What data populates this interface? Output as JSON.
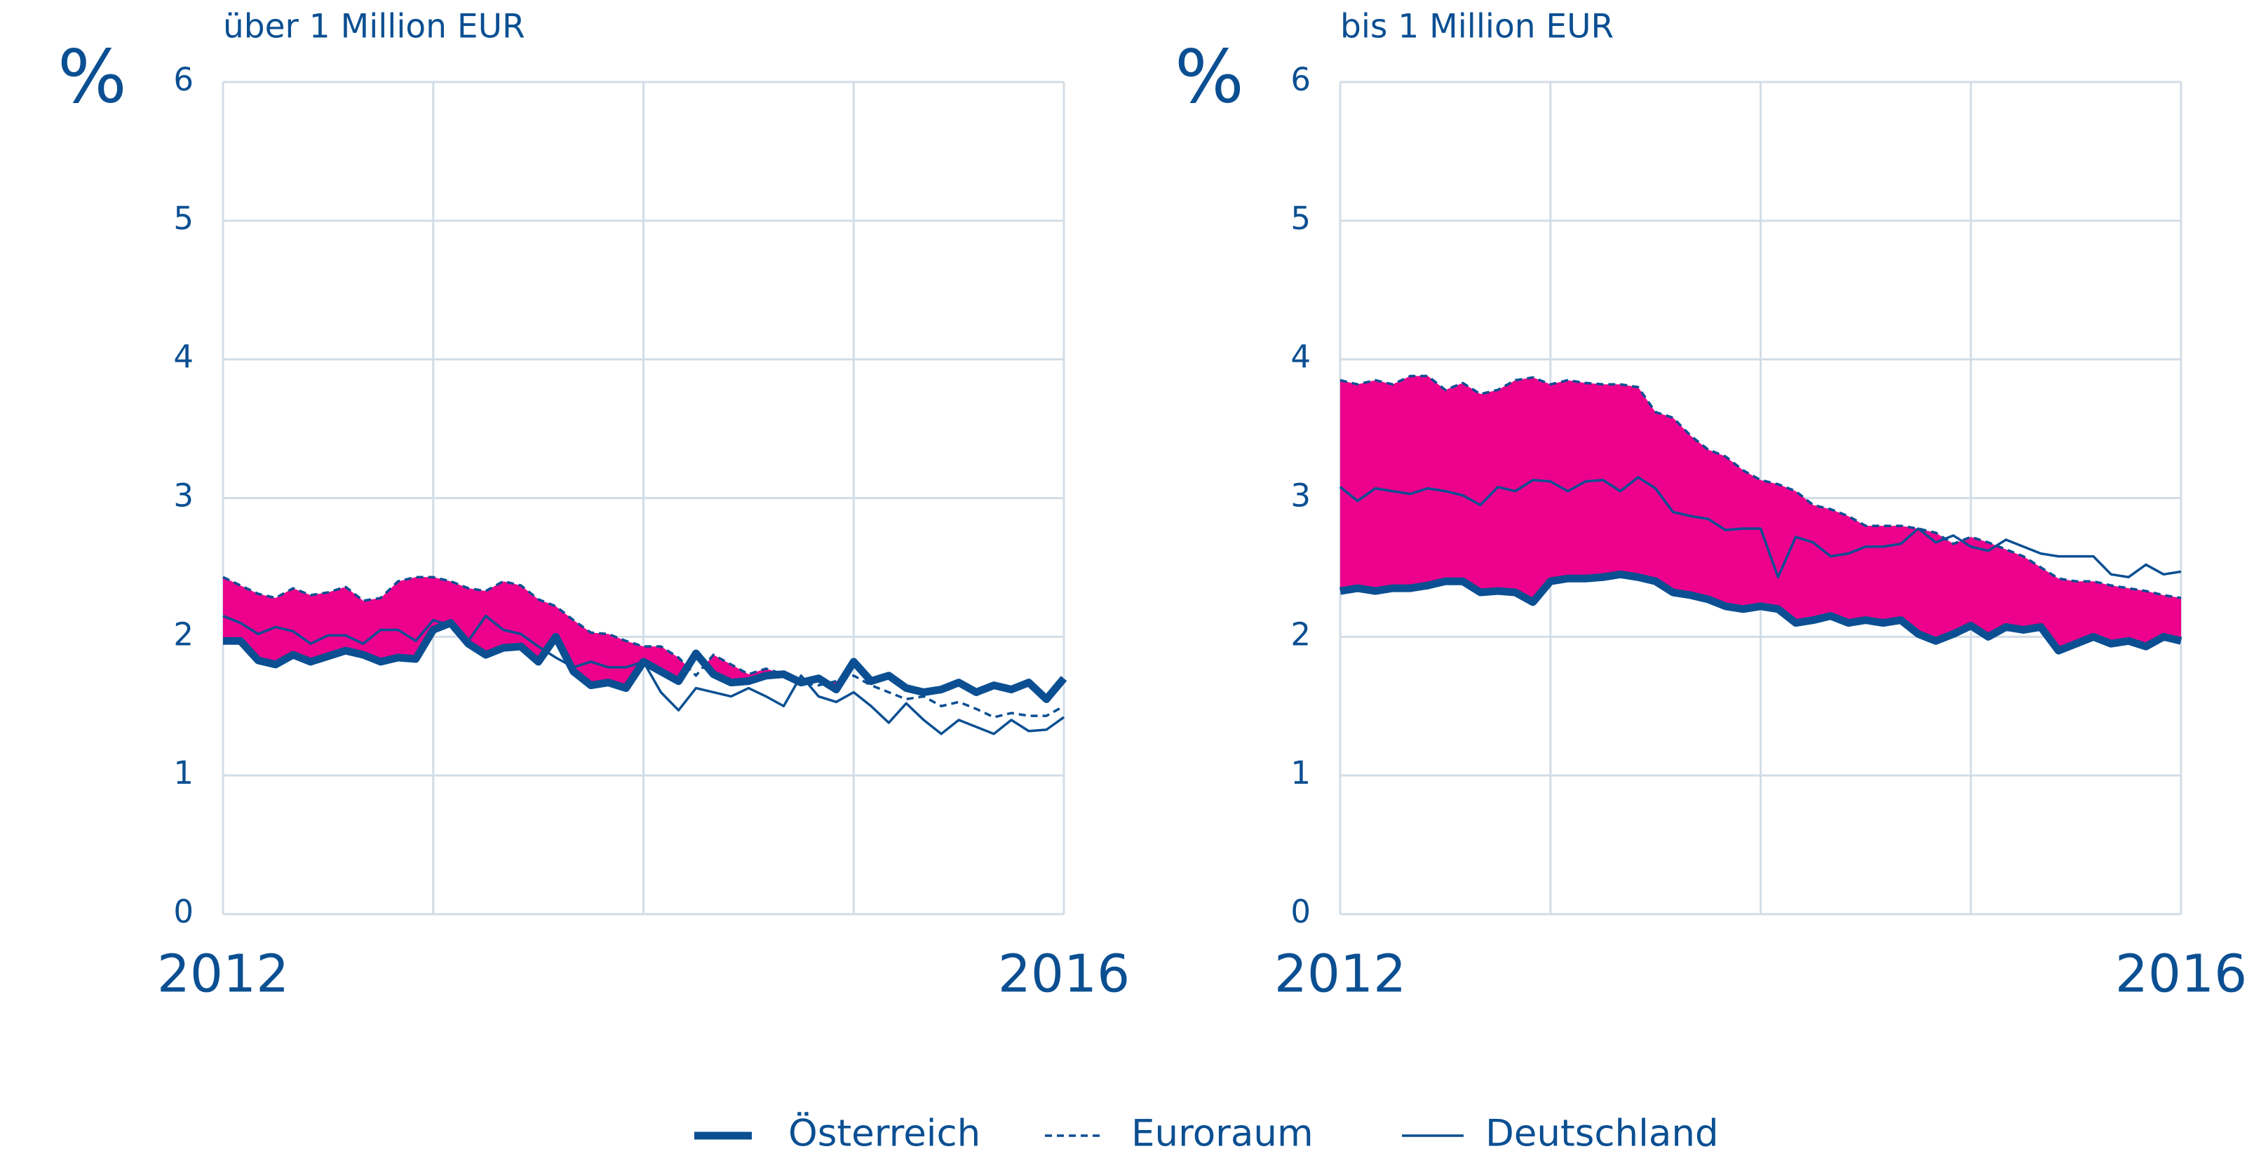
{
  "chart_data": [
    {
      "type": "line",
      "title": "über 1 Million EUR",
      "ylabel": "%",
      "x": [
        2012,
        2012.083,
        2012.167,
        2012.25,
        2012.333,
        2012.417,
        2012.5,
        2012.583,
        2012.667,
        2012.75,
        2012.833,
        2012.917,
        2013,
        2013.083,
        2013.167,
        2013.25,
        2013.333,
        2013.417,
        2013.5,
        2013.583,
        2013.667,
        2013.75,
        2013.833,
        2013.917,
        2014,
        2014.083,
        2014.167,
        2014.25,
        2014.333,
        2014.417,
        2014.5,
        2014.583,
        2014.667,
        2014.75,
        2014.833,
        2014.917,
        2015,
        2015.083,
        2015.167,
        2015.25,
        2015.333,
        2015.417,
        2015.5,
        2015.583,
        2015.667,
        2015.75,
        2015.833,
        2015.917,
        2016
      ],
      "series": [
        {
          "name": "Österreich",
          "color": "#0b4f92",
          "style": "thick",
          "values": [
            1.97,
            1.97,
            1.83,
            1.8,
            1.87,
            1.82,
            1.86,
            1.9,
            1.87,
            1.82,
            1.85,
            1.84,
            2.05,
            2.1,
            1.95,
            1.87,
            1.92,
            1.93,
            1.82,
            2.0,
            1.75,
            1.65,
            1.67,
            1.63,
            1.82,
            1.75,
            1.68,
            1.88,
            1.73,
            1.67,
            1.68,
            1.72,
            1.73,
            1.67,
            1.7,
            1.62,
            1.82,
            1.68,
            1.72,
            1.63,
            1.6,
            1.62,
            1.67,
            1.6,
            1.65,
            1.62,
            1.67,
            1.55,
            1.7
          ]
        },
        {
          "name": "Euroraum",
          "color": "#0b4f92",
          "style": "dashed",
          "values": [
            2.43,
            2.37,
            2.31,
            2.28,
            2.35,
            2.3,
            2.32,
            2.36,
            2.26,
            2.28,
            2.4,
            2.43,
            2.43,
            2.4,
            2.35,
            2.33,
            2.4,
            2.37,
            2.27,
            2.22,
            2.12,
            2.03,
            2.02,
            1.97,
            1.93,
            1.93,
            1.85,
            1.72,
            1.87,
            1.8,
            1.73,
            1.77,
            1.73,
            1.67,
            1.65,
            1.68,
            1.72,
            1.65,
            1.6,
            1.55,
            1.57,
            1.5,
            1.53,
            1.48,
            1.42,
            1.45,
            1.43,
            1.43,
            1.5
          ]
        },
        {
          "name": "Deutschland",
          "color": "#0b4f92",
          "style": "thin",
          "values": [
            2.15,
            2.1,
            2.02,
            2.07,
            2.04,
            1.95,
            2.01,
            2.01,
            1.95,
            2.05,
            2.05,
            1.97,
            2.12,
            2.08,
            1.97,
            2.15,
            2.05,
            2.02,
            1.93,
            1.85,
            1.78,
            1.82,
            1.78,
            1.78,
            1.82,
            1.6,
            1.47,
            1.63,
            1.6,
            1.57,
            1.63,
            1.57,
            1.5,
            1.72,
            1.57,
            1.53,
            1.6,
            1.5,
            1.38,
            1.52,
            1.4,
            1.3,
            1.4,
            1.35,
            1.3,
            1.4,
            1.32,
            1.33,
            1.42
          ]
        }
      ],
      "fill_color": "#ec008c",
      "xlim": [
        2012,
        2016
      ],
      "xticks": [
        2012,
        {
          "value": 2013,
          "label": null
        },
        {
          "value": 2014,
          "label": null
        },
        {
          "value": 2015,
          "label": null
        },
        2016
      ],
      "ylim": [
        0,
        6
      ],
      "yticks": [
        0,
        1,
        2,
        3,
        4,
        5,
        6
      ],
      "grid": true
    },
    {
      "type": "line",
      "title": "bis 1 Million EUR",
      "ylabel": "%",
      "x": [
        2012,
        2012.083,
        2012.167,
        2012.25,
        2012.333,
        2012.417,
        2012.5,
        2012.583,
        2012.667,
        2012.75,
        2012.833,
        2012.917,
        2013,
        2013.083,
        2013.167,
        2013.25,
        2013.333,
        2013.417,
        2013.5,
        2013.583,
        2013.667,
        2013.75,
        2013.833,
        2013.917,
        2014,
        2014.083,
        2014.167,
        2014.25,
        2014.333,
        2014.417,
        2014.5,
        2014.583,
        2014.667,
        2014.75,
        2014.833,
        2014.917,
        2015,
        2015.083,
        2015.167,
        2015.25,
        2015.333,
        2015.417,
        2015.5,
        2015.583,
        2015.667,
        2015.75,
        2015.833,
        2015.917,
        2016
      ],
      "series": [
        {
          "name": "Österreich",
          "color": "#0b4f92",
          "style": "thick",
          "values": [
            2.33,
            2.35,
            2.33,
            2.35,
            2.35,
            2.37,
            2.4,
            2.4,
            2.32,
            2.33,
            2.32,
            2.25,
            2.4,
            2.42,
            2.42,
            2.43,
            2.45,
            2.43,
            2.4,
            2.32,
            2.3,
            2.27,
            2.22,
            2.2,
            2.22,
            2.2,
            2.1,
            2.12,
            2.15,
            2.1,
            2.12,
            2.1,
            2.12,
            2.02,
            1.97,
            2.02,
            2.08,
            2.0,
            2.07,
            2.05,
            2.07,
            1.9,
            1.95,
            2.0,
            1.95,
            1.97,
            1.93,
            2.0,
            1.97
          ]
        },
        {
          "name": "Euroraum",
          "color": "#0b4f92",
          "style": "dashed",
          "values": [
            3.85,
            3.82,
            3.85,
            3.82,
            3.88,
            3.88,
            3.78,
            3.83,
            3.75,
            3.78,
            3.85,
            3.87,
            3.82,
            3.85,
            3.83,
            3.82,
            3.82,
            3.8,
            3.62,
            3.58,
            3.45,
            3.35,
            3.3,
            3.2,
            3.13,
            3.1,
            3.05,
            2.95,
            2.92,
            2.87,
            2.8,
            2.8,
            2.8,
            2.78,
            2.75,
            2.67,
            2.72,
            2.68,
            2.63,
            2.58,
            2.5,
            2.42,
            2.4,
            2.4,
            2.37,
            2.35,
            2.33,
            2.3,
            2.28
          ]
        },
        {
          "name": "Deutschland",
          "color": "#0b4f92",
          "style": "thin",
          "values": [
            3.08,
            2.98,
            3.07,
            3.05,
            3.03,
            3.07,
            3.05,
            3.02,
            2.95,
            3.08,
            3.05,
            3.13,
            3.12,
            3.05,
            3.12,
            3.13,
            3.05,
            3.15,
            3.07,
            2.9,
            2.87,
            2.85,
            2.77,
            2.78,
            2.78,
            2.43,
            2.72,
            2.68,
            2.58,
            2.6,
            2.65,
            2.65,
            2.67,
            2.78,
            2.68,
            2.73,
            2.65,
            2.62,
            2.7,
            2.65,
            2.6,
            2.58,
            2.58,
            2.58,
            2.45,
            2.43,
            2.52,
            2.45,
            2.47
          ]
        }
      ],
      "fill_color": "#ec008c",
      "xlim": [
        2012,
        2016
      ],
      "xticks": [
        2012,
        {
          "value": 2013,
          "label": null
        },
        {
          "value": 2014,
          "label": null
        },
        {
          "value": 2015,
          "label": null
        },
        2016
      ],
      "ylim": [
        0,
        6
      ],
      "yticks": [
        0,
        1,
        2,
        3,
        4,
        5,
        6
      ],
      "grid": true
    }
  ]
}
